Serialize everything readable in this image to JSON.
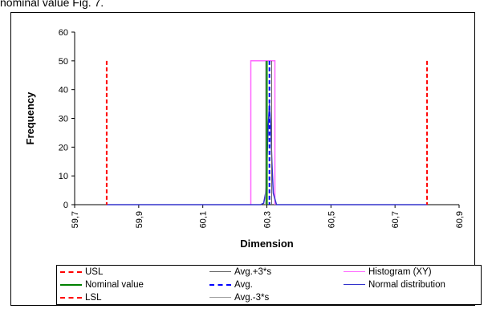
{
  "caption": "nominal value Fig. 7.",
  "chart_data": {
    "type": "line",
    "xlabel": "Dimension",
    "ylabel": "Frequency",
    "xlim": [
      59.7,
      60.9
    ],
    "ylim": [
      0,
      60
    ],
    "x_ticks": [
      "59,7",
      "59,9",
      "60,1",
      "60,3",
      "60,5",
      "60,7",
      "60,9"
    ],
    "y_ticks": [
      "0",
      "10",
      "20",
      "30",
      "40",
      "50",
      "60"
    ],
    "grid": false,
    "legend_position": "bottom",
    "series": [
      {
        "name": "USL",
        "kind": "vline",
        "x": 60.8,
        "color": "#ff0000",
        "dash": true,
        "width": 2
      },
      {
        "name": "Nominal value",
        "kind": "vline",
        "x": 60.3,
        "color": "#008000",
        "dash": false,
        "width": 2
      },
      {
        "name": "LSL",
        "kind": "vline",
        "x": 59.8,
        "color": "#ff0000",
        "dash": true,
        "width": 2
      },
      {
        "name": "Avg.+3*s",
        "kind": "vline",
        "x": 60.315,
        "color": "#606060",
        "dash": false,
        "width": 1
      },
      {
        "name": "Avg.",
        "kind": "vline",
        "x": 60.308,
        "color": "#0000ff",
        "dash": true,
        "width": 2
      },
      {
        "name": "Avg.-3*s",
        "kind": "vline",
        "x": 60.296,
        "color": "#a0a0a0",
        "dash": false,
        "width": 1
      },
      {
        "name": "Histogram (XY)",
        "kind": "polyline",
        "color": "#ff66ff",
        "dash": false,
        "width": 1.5,
        "x": [
          60.25,
          60.25,
          60.325,
          60.325
        ],
        "y": [
          0,
          50,
          50,
          0
        ]
      },
      {
        "name": "Normal distribution",
        "kind": "polyline",
        "color": "#3333cc",
        "dash": false,
        "width": 1.5,
        "x": [
          59.8,
          60.28,
          60.29,
          60.296,
          60.3,
          60.304,
          60.308,
          60.312,
          60.316,
          60.32,
          60.33,
          60.8
        ],
        "y": [
          0,
          0,
          0.5,
          4,
          14,
          27,
          35,
          27,
          14,
          4,
          0,
          0
        ]
      }
    ],
    "legend": [
      {
        "series": "USL"
      },
      {
        "series": "Avg.+3*s"
      },
      {
        "series": "Histogram (XY)"
      },
      {
        "series": "Nominal value"
      },
      {
        "series": "Avg."
      },
      {
        "series": "Normal distribution"
      },
      {
        "series": "LSL"
      },
      {
        "series": "Avg.-3*s"
      }
    ]
  }
}
